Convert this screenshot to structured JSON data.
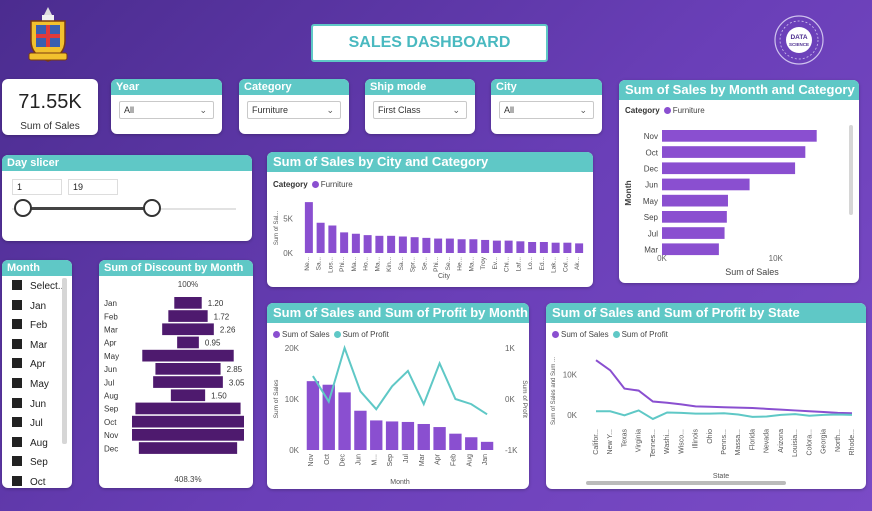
{
  "title": "SALES DASHBOARD",
  "kpi": {
    "value": "71.55K",
    "label": "Sum of Sales"
  },
  "filters": [
    {
      "label": "Year",
      "value": "All"
    },
    {
      "label": "Category",
      "value": "Furniture"
    },
    {
      "label": "Ship mode",
      "value": "First Class"
    },
    {
      "label": "City",
      "value": "All"
    }
  ],
  "day_slicer": {
    "label": "Day slicer",
    "min": "1",
    "max": "19"
  },
  "month_slicer": {
    "label": "Month",
    "items": [
      "Select...",
      "Jan",
      "Feb",
      "Mar",
      "Apr",
      "May",
      "Jun",
      "Jul",
      "Aug",
      "Sep",
      "Oct"
    ]
  },
  "colors": {
    "purple": "#8a4fd0",
    "dark_purple": "#4e1a6e",
    "teal": "#5fc8c6"
  },
  "icons": [
    "chevron-down-icon",
    "university-crest-logo",
    "data-science-logo"
  ],
  "charts": {
    "city": {
      "title": "Sum of Sales by City and Category",
      "legend_title": "Category",
      "legend_item": "Furniture",
      "xlabel": "City",
      "ylabel": "Sum of Sal...",
      "yticks": [
        "5K",
        "0K"
      ],
      "chart_data": {
        "type": "bar",
        "categories": [
          "Ne...",
          "Sa...",
          "Los...",
          "Phi...",
          "Ma...",
          "Ho...",
          "Ma...",
          "Kin...",
          "Sa...",
          "Spr...",
          "Se...",
          "Phi...",
          "Se...",
          "He...",
          "Ma...",
          "Troy",
          "Ev...",
          "Chi...",
          "Laf...",
          "Lo...",
          "Ed...",
          "Lak...",
          "Col...",
          "Ak..."
        ],
        "values": [
          7400,
          4400,
          4000,
          3000,
          2800,
          2600,
          2500,
          2500,
          2400,
          2300,
          2200,
          2100,
          2100,
          2000,
          2000,
          1900,
          1800,
          1800,
          1700,
          1600,
          1600,
          1500,
          1500,
          1400
        ],
        "ylim": [
          0,
          8000
        ]
      }
    },
    "month_category": {
      "title": "Sum of Sales by Month and Category",
      "legend_title": "Category",
      "legend_item": "Furniture",
      "xlabel": "Sum of Sales",
      "ylabel": "Month",
      "xticks": [
        "0K",
        "10K"
      ],
      "chart_data": {
        "type": "bar",
        "categories": [
          "Nov",
          "Oct",
          "Dec",
          "Jun",
          "May",
          "Sep",
          "Jul",
          "Mar"
        ],
        "values": [
          13600,
          12600,
          11700,
          7700,
          5800,
          5700,
          5500,
          5000
        ],
        "xlim": [
          0,
          16000
        ]
      }
    },
    "discount": {
      "title": "Sum of Discount by Month",
      "top_label": "100%",
      "bottom_label": "408.3%",
      "chart_data": {
        "type": "bar",
        "categories": [
          "Jan",
          "Feb",
          "Mar",
          "Apr",
          "May",
          "Jun",
          "Jul",
          "Aug",
          "Sep",
          "Oct",
          "Nov",
          "Dec"
        ],
        "values": [
          1.2,
          1.72,
          2.26,
          0.95,
          4.0,
          2.85,
          3.05,
          1.5,
          4.6,
          4.9,
          4.9,
          4.3
        ],
        "labels": [
          "1.20",
          "1.72",
          "2.26",
          "0.95",
          "",
          "2.85",
          "3.05",
          "1.50",
          "",
          "",
          "",
          ""
        ]
      }
    },
    "sales_profit_month": {
      "title": "Sum of Sales and Sum of Profit by Month",
      "legend": [
        "Sum of Sales",
        "Sum of Profit"
      ],
      "xlabel": "Month",
      "ylabel_left": "Sum of Sales",
      "ylabel_right": "Sum of Profit",
      "yticks_left": [
        "20K",
        "10K",
        "0K"
      ],
      "yticks_right": [
        "1K",
        "0K",
        "-1K"
      ],
      "chart_data": {
        "type": "bar",
        "categories": [
          "Nov",
          "Oct",
          "Dec",
          "Jun",
          "M...",
          "Sep",
          "Jul",
          "Mar",
          "Apr",
          "Feb",
          "Aug",
          "Jan"
        ],
        "series": [
          {
            "name": "Sum of Sales",
            "values": [
              13500,
              12800,
              11300,
              7700,
              5800,
              5600,
              5500,
              5100,
              4500,
              3200,
              2500,
              1600
            ]
          },
          {
            "name": "Sum of Profit",
            "values": [
              450,
              -50,
              1000,
              150,
              -200,
              250,
              550,
              -100,
              700,
              0,
              -100,
              -300
            ]
          }
        ],
        "ylim_left": [
          0,
          20000
        ],
        "ylim_right": [
          -1000,
          1000
        ]
      }
    },
    "sales_profit_state": {
      "title": "Sum of Sales and Sum of Profit by State",
      "legend": [
        "Sum of Sales",
        "Sum of Profit"
      ],
      "xlabel": "State",
      "ylabel": "Sum of Sales and Sum ...",
      "yticks": [
        "10K",
        "0K"
      ],
      "chart_data": {
        "type": "line",
        "categories": [
          "Califor...",
          "New Y...",
          "Texas",
          "Virginia",
          "Tennes...",
          "Washi...",
          "Wisco...",
          "Illinois",
          "Ohio",
          "Penns...",
          "Massa...",
          "Florida",
          "Nevada",
          "Arizona",
          "Louisia...",
          "Colora...",
          "Georgia",
          "North...",
          "Rhode..."
        ],
        "series": [
          {
            "name": "Sum of Sales",
            "values": [
              13500,
              11000,
              6500,
              6000,
              3300,
              3000,
              2600,
              2100,
              2000,
              1900,
              1800,
              1700,
              1500,
              1300,
              1100,
              900,
              700,
              500,
              400
            ]
          },
          {
            "name": "Sum of Profit",
            "values": [
              900,
              900,
              -100,
              1100,
              -1000,
              600,
              500,
              300,
              300,
              400,
              100,
              -500,
              -400,
              0,
              200,
              -200,
              0,
              100,
              0
            ]
          }
        ],
        "ylim": [
          -2000,
          17000
        ]
      }
    }
  }
}
